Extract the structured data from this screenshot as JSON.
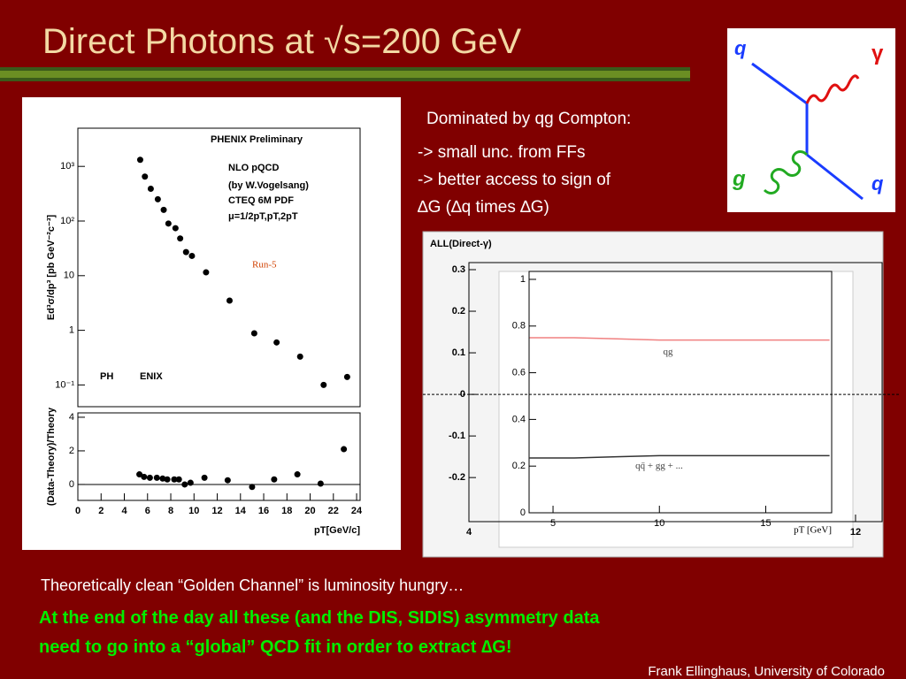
{
  "title": "Direct Photons  at √s=200 GeV",
  "feynman": {
    "labels": [
      "q",
      "γ",
      "g",
      "q"
    ]
  },
  "text": {
    "heading": "Dominated by qg Compton:",
    "bullets": [
      "-> small unc. from FFs",
      "-> better access to sign of",
      "∆G (∆q times ∆G)"
    ],
    "remark": "Theoretically clean “Golden Channel” is luminosity hungry…",
    "conclusion": [
      "At the end of the day all these (and the DIS, SIDIS) asymmetry data",
      "need to go into a “global” QCD fit in order to extract ∆G!"
    ],
    "footer": "Frank Ellinghaus, University of Colorado"
  },
  "chart_data": [
    {
      "type": "scatter",
      "ylabel": "Ed³σ/dp³ [pb GeV⁻²c⁻³]",
      "log_y": true,
      "annotations": [
        "PHENIX Preliminary",
        "NLO pQCD",
        "(by W.Vogelsang)",
        "CTEQ 6M PDF",
        "μ=1/2pT,pT,2pT",
        "Run-5",
        "PH",
        "ENIX"
      ],
      "x": [
        5.3,
        5.7,
        6.2,
        6.8,
        7.3,
        7.7,
        8.3,
        8.7,
        9.2,
        9.7,
        10.9,
        12.9,
        15.0,
        16.9,
        18.9,
        20.9,
        22.9
      ],
      "values": [
        1320,
        650,
        390,
        250,
        160,
        90,
        74,
        48,
        27,
        23,
        11.5,
        3.5,
        0.88,
        0.6,
        0.33,
        0.1,
        0.14
      ],
      "color": "#000000",
      "xlim": [
        0,
        24
      ],
      "ylim": [
        0.04,
        5000
      ],
      "yticks": [
        {
          "value": 0.1,
          "label": "10⁻¹"
        },
        1,
        10,
        {
          "value": 100,
          "label": "10²"
        },
        {
          "value": 1000,
          "label": "10³"
        }
      ]
    },
    {
      "type": "scatter",
      "ylabel": "(Data-Theory)/Theory",
      "xlabel": "pT[GeV/c]",
      "x": [
        5.3,
        5.7,
        6.2,
        6.8,
        7.3,
        7.7,
        8.3,
        8.7,
        9.2,
        9.7,
        10.9,
        12.9,
        15.0,
        16.9,
        18.9,
        20.9,
        22.9
      ],
      "values": [
        0.6,
        0.45,
        0.4,
        0.4,
        0.35,
        0.3,
        0.3,
        0.3,
        0.0,
        0.1,
        0.4,
        0.25,
        -0.15,
        0.3,
        0.6,
        0.05,
        2.1
      ],
      "color": "#000000",
      "xlim": [
        0,
        24.3
      ],
      "ylim": [
        -0.95,
        4.26
      ],
      "xticks": [
        0,
        2,
        4,
        6,
        8,
        10,
        12,
        14,
        16,
        18,
        20,
        22,
        24
      ],
      "yticks": [
        0,
        2,
        4
      ]
    },
    {
      "type": "frame",
      "title": "ALL(Direct-γ)",
      "xlim": [
        4,
        12.55
      ],
      "ylim": [
        -0.306,
        0.317
      ],
      "xticks": [
        4,
        12
      ],
      "yticks": [
        {
          "value": 0.3,
          "label": "0.3"
        },
        {
          "value": 0.2,
          "label": "0.2"
        },
        {
          "value": 0.1,
          "label": "0.1"
        },
        0,
        {
          "value": -0.1,
          "label": "-0.1"
        },
        {
          "value": -0.2,
          "label": "-0.2"
        }
      ]
    },
    {
      "type": "line",
      "xlabel": "pT [GeV]",
      "x": [
        3.9,
        6,
        8,
        10,
        12,
        14,
        16,
        18
      ],
      "series": [
        {
          "name": "qg",
          "color": "#f08080",
          "values": [
            0.75,
            0.75,
            0.745,
            0.74,
            0.74,
            0.74,
            0.74,
            0.74
          ]
        },
        {
          "name": "qq̄ + gg + ...",
          "color": "#333333",
          "values": [
            0.235,
            0.235,
            0.24,
            0.245,
            0.245,
            0.245,
            0.245,
            0.245
          ]
        }
      ],
      "xlim": [
        3.875,
        18.1
      ],
      "ylim": [
        0,
        1.034
      ],
      "xticks": [
        5,
        10,
        15
      ],
      "yticks": [
        0,
        {
          "value": 0.2,
          "label": "0.2"
        },
        {
          "value": 0.4,
          "label": "0.4"
        },
        {
          "value": 0.6,
          "label": "0.6"
        },
        {
          "value": 0.8,
          "label": "0.8"
        },
        1
      ]
    }
  ]
}
